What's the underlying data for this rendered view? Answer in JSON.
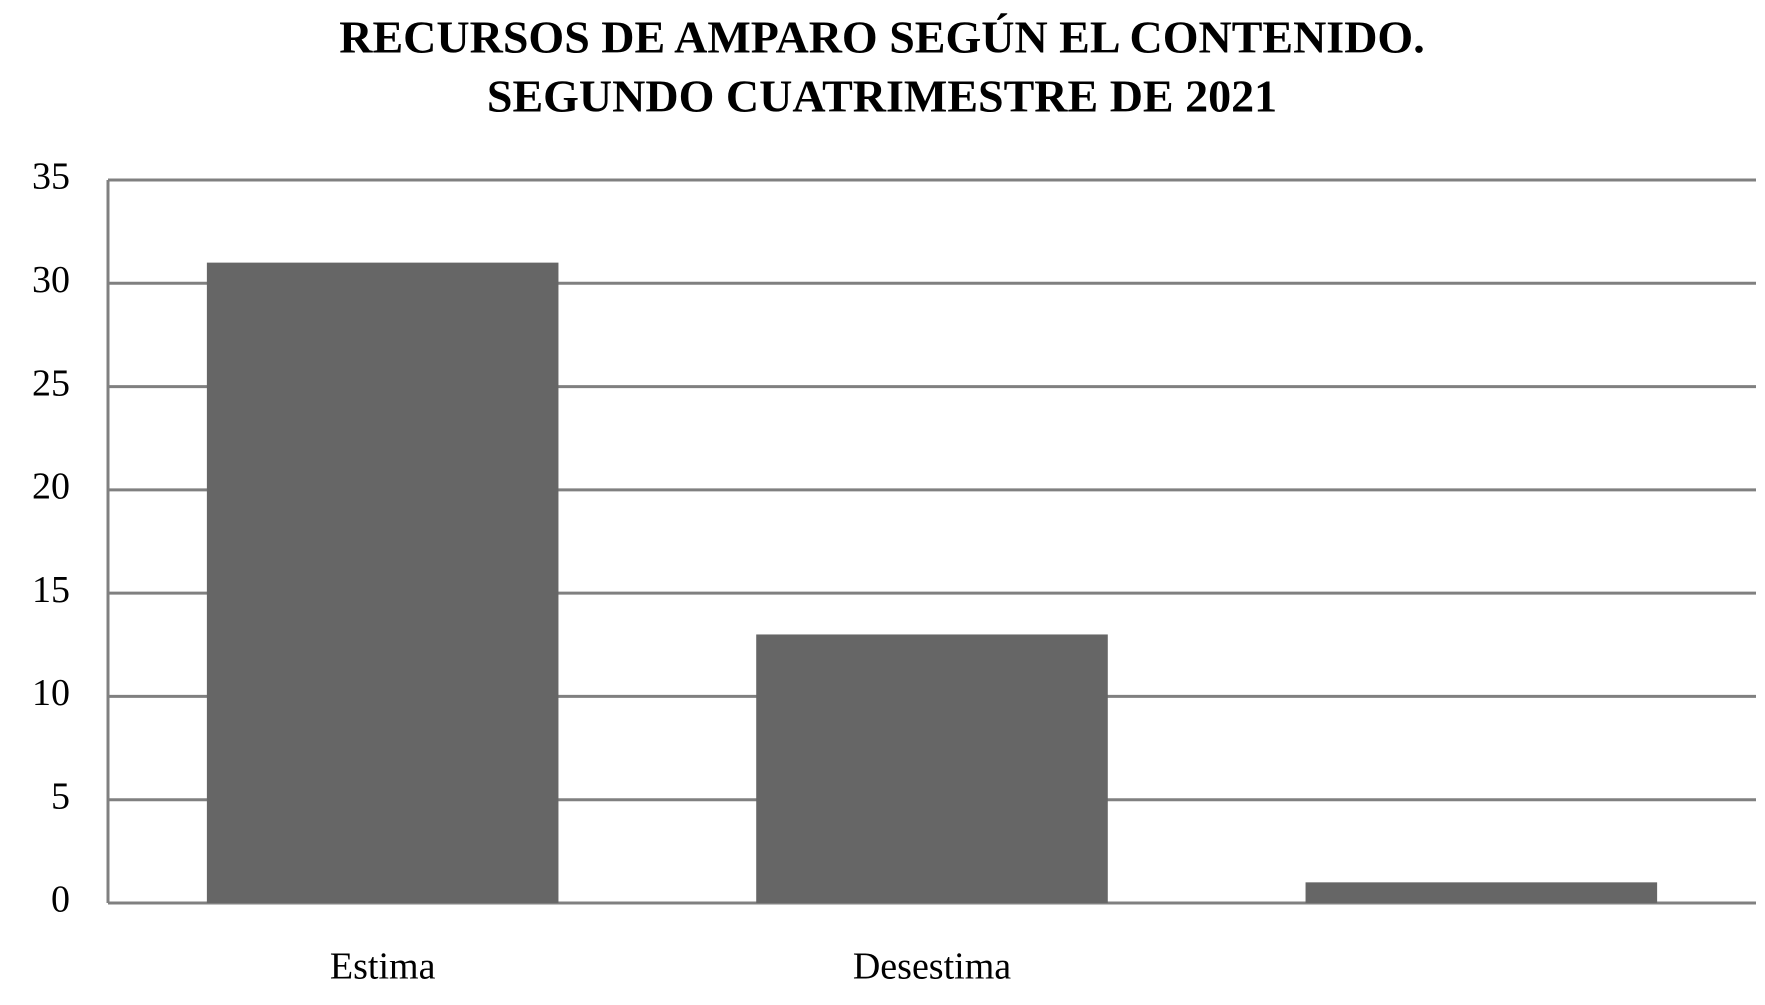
{
  "chart_data": {
    "type": "bar",
    "title": [
      "RECURSOS DE AMPARO SEGÚN EL CONTENIDO.",
      "SEGUNDO CUATRIMESTRE DE 2021"
    ],
    "categories": [
      "Estima",
      "Desestima",
      null
    ],
    "values": [
      31,
      13,
      1
    ],
    "color": "#666666",
    "ylim": [
      0,
      35
    ],
    "yticks": [
      0,
      5,
      10,
      15,
      20,
      25,
      30,
      35
    ],
    "grid": true
  }
}
